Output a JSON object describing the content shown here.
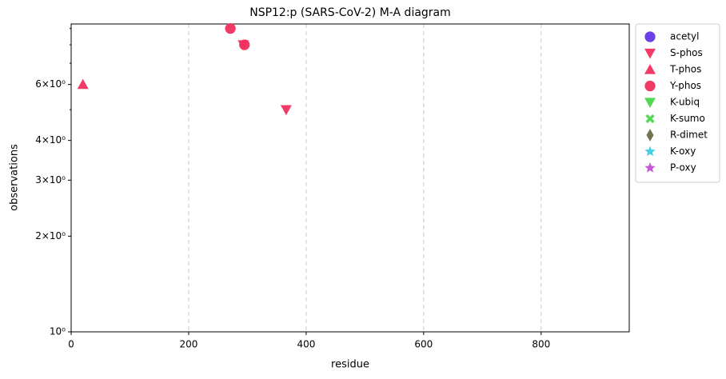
{
  "chart_data": {
    "type": "scatter",
    "title": "NSP12:p (SARS-CoV-2) M-A diagram",
    "x_label": "residue",
    "y_label": "observations",
    "xlim": [
      0,
      950
    ],
    "xticks": [
      0,
      200,
      400,
      600,
      800
    ],
    "ylim": [
      1,
      9.3
    ],
    "log_y": true,
    "yticks": [
      {
        "value": 1,
        "label": "10⁰"
      },
      {
        "value": 2,
        "label": "2×10⁰"
      },
      {
        "value": 3,
        "label": "3×10⁰"
      },
      {
        "value": 4,
        "label": "4×10⁰"
      },
      {
        "value": 6,
        "label": "6×10⁰"
      }
    ],
    "yminorticks": [
      5,
      7,
      8,
      9
    ],
    "grid": "x",
    "legend": "outside-right",
    "series": [
      {
        "name": "acetyl",
        "color": "#6436e6",
        "marker": "circle",
        "x": [],
        "y": []
      },
      {
        "name": "S-phos",
        "color": "#f0305f",
        "marker": "triangle-down",
        "x": [
          293,
          366
        ],
        "y": [
          8,
          5
        ]
      },
      {
        "name": "T-phos",
        "color": "#f0305f",
        "marker": "triangle-up",
        "x": [
          20
        ],
        "y": [
          6
        ]
      },
      {
        "name": "Y-phos",
        "color": "#f0305f",
        "marker": "circle",
        "x": [
          271,
          295
        ],
        "y": [
          9,
          8
        ]
      },
      {
        "name": "K-ubiq",
        "color": "#4cd64c",
        "marker": "triangle-down",
        "x": [],
        "y": []
      },
      {
        "name": "K-sumo",
        "color": "#4cd64c",
        "marker": "x",
        "x": [],
        "y": []
      },
      {
        "name": "R-dimet",
        "color": "#6b6a44",
        "marker": "diamond",
        "x": [],
        "y": []
      },
      {
        "name": "K-oxy",
        "color": "#3ccbe0",
        "marker": "star",
        "x": [],
        "y": []
      },
      {
        "name": "P-oxy",
        "color": "#c450d4",
        "marker": "star",
        "x": [],
        "y": []
      }
    ]
  }
}
